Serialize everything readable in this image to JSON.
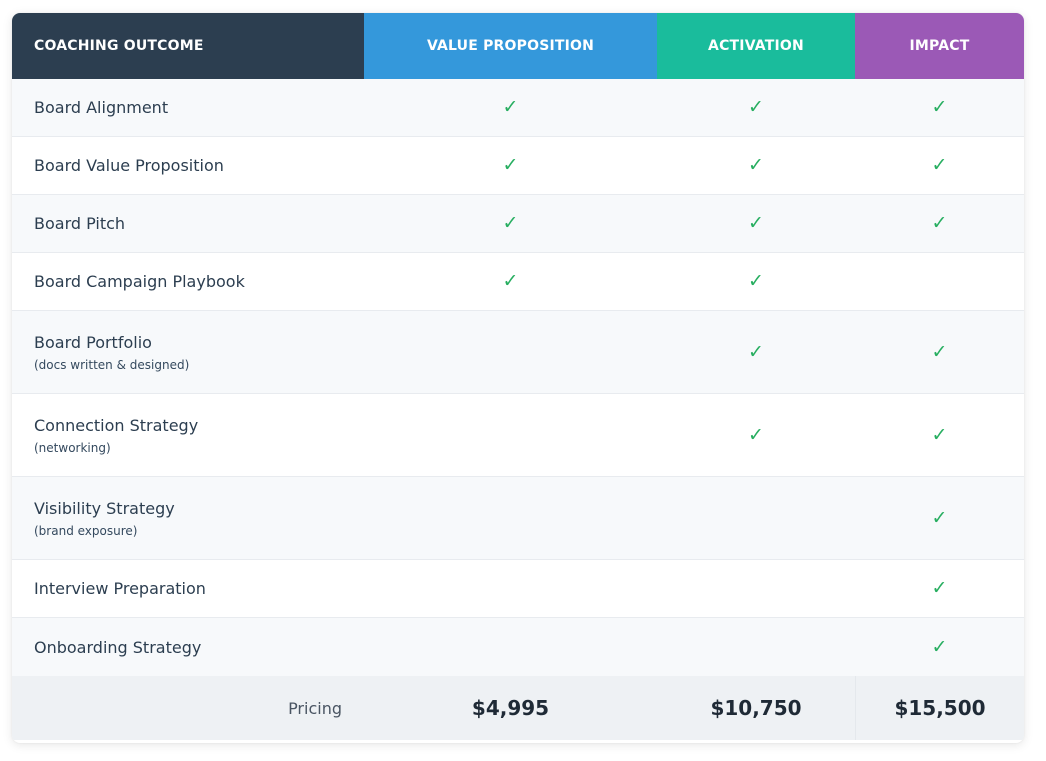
{
  "header": {
    "columns": [
      "COACHING OUTCOME",
      "VALUE PROPOSITION",
      "ACTIVATION",
      "IMPACT"
    ]
  },
  "check_glyph": "✓",
  "features": [
    {
      "name": "Board Alignment",
      "note": "",
      "tiers": [
        true,
        true,
        true
      ]
    },
    {
      "name": "Board Value Proposition",
      "note": "",
      "tiers": [
        true,
        true,
        true
      ]
    },
    {
      "name": "Board Pitch",
      "note": "",
      "tiers": [
        true,
        true,
        true
      ]
    },
    {
      "name": "Board Campaign Playbook",
      "note": "",
      "tiers": [
        true,
        true,
        false
      ]
    },
    {
      "name": "Board Portfolio",
      "note": "(docs written & designed)",
      "tiers": [
        false,
        true,
        true
      ]
    },
    {
      "name": "Connection Strategy",
      "note": "(networking)",
      "tiers": [
        false,
        true,
        true
      ]
    },
    {
      "name": "Visibility Strategy",
      "note": "(brand exposure)",
      "tiers": [
        false,
        false,
        true
      ]
    },
    {
      "name": "Interview Preparation",
      "note": "",
      "tiers": [
        false,
        false,
        true
      ]
    },
    {
      "name": "Onboarding Strategy",
      "note": "",
      "tiers": [
        false,
        false,
        true
      ]
    }
  ],
  "pricing": {
    "label": "Pricing",
    "prices": [
      "$4,995",
      "$10,750",
      "$15,500"
    ]
  },
  "colors": {
    "outcome_header": "#2c3e50",
    "value_proposition_header": "#3498db",
    "activation_header": "#1abc9c",
    "impact_header": "#9b59b6",
    "check": "#27ae60"
  }
}
